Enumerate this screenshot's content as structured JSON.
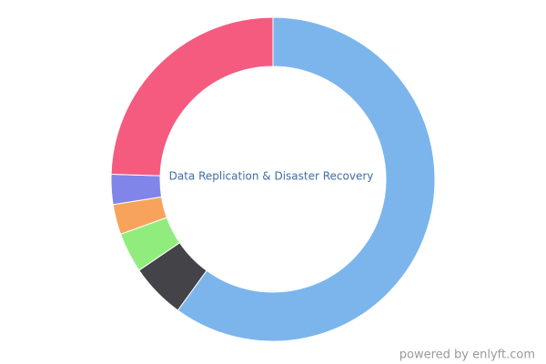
{
  "chart_data": {
    "type": "pie",
    "center_text": "Data Replication & Disaster Recovery",
    "values": [
      60,
      5.5,
      4,
      3,
      3,
      24.5
    ],
    "colors": [
      "#7cb5ec",
      "#434348",
      "#90ed7d",
      "#f7a35c",
      "#8085e9",
      "#f45b7f"
    ],
    "credit": "powered by enlyft.com"
  }
}
